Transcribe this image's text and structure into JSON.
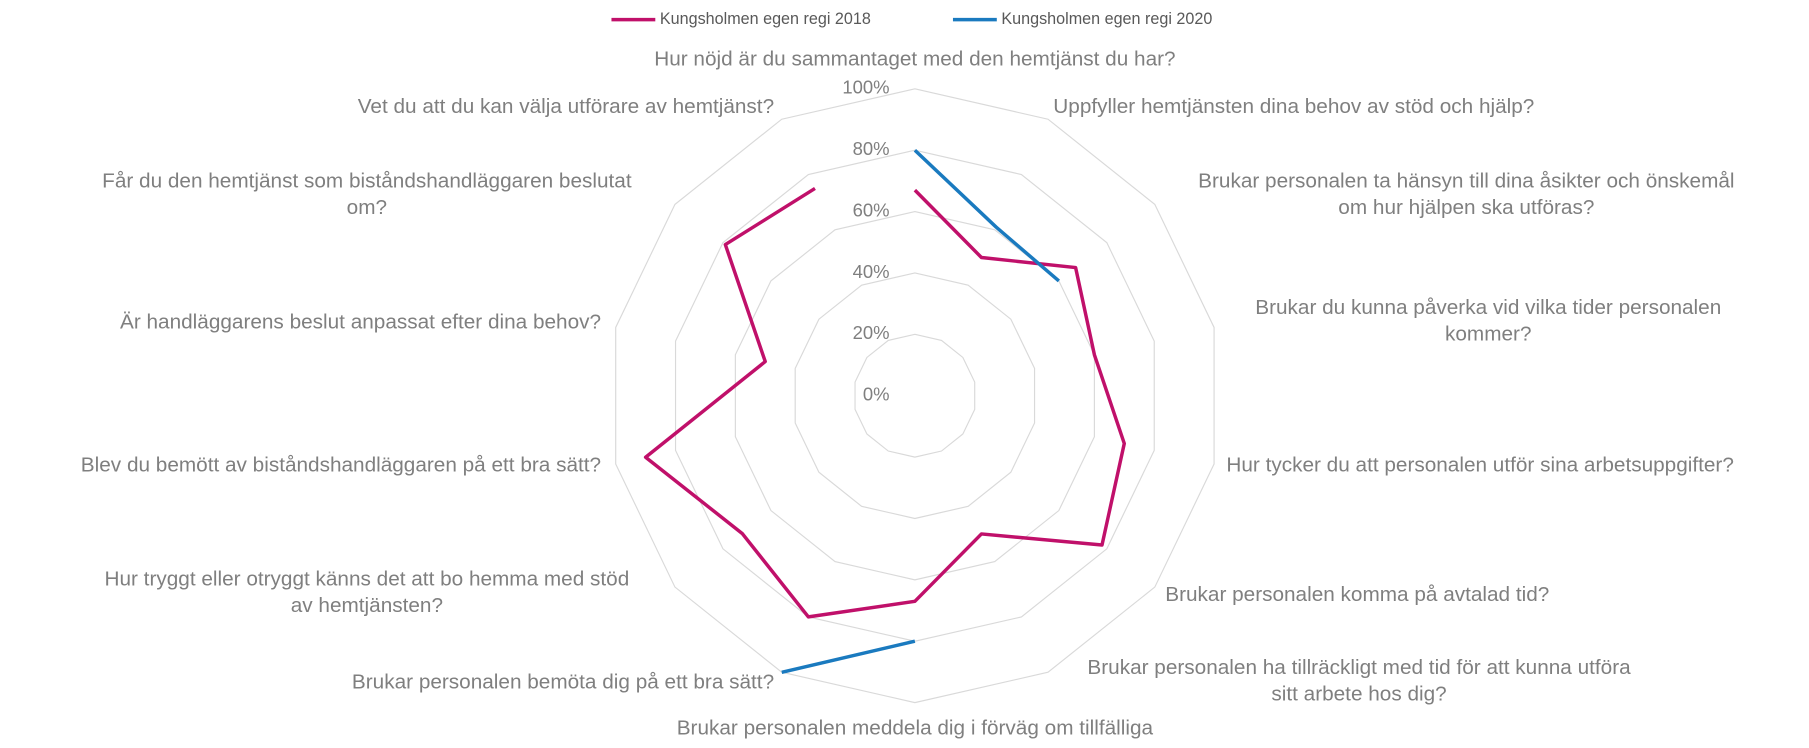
{
  "chart_data": {
    "type": "radar",
    "categories": [
      "Hur nöjd är du sammantaget med den hemtjänst du har?",
      "Uppfyller hemtjänsten dina behov av stöd och hjälp?",
      "Brukar personalen ta hänsyn till dina åsikter och önskemål om hur hjälpen ska utföras?",
      "Brukar du kunna påverka vid vilka tider personalen kommer?",
      "Hur tycker du att personalen utför sina arbetsuppgifter?",
      "Brukar personalen komma på avtalad tid?",
      "Brukar personalen ha tillräckligt med tid för att kunna utföra sitt arbete hos dig?",
      "Brukar personalen meddela dig i förväg om tillfälliga",
      "Brukar personalen bemöta dig på ett bra sätt?",
      "Hur tryggt eller otryggt känns det att bo hemma med stöd av hemtjänsten?",
      "Blev du bemött av biståndshandläggaren på ett bra sätt?",
      "Är handläggarens beslut anpassat efter dina behov?",
      "Får du den hemtjänst som biståndshandläggaren beslutat om?",
      "Vet du att du kan välja utförare av hemtjänst?"
    ],
    "series": [
      {
        "name": "Kungsholmen egen regi 2018",
        "color": "#c0106a",
        "values": [
          67,
          50,
          67,
          60,
          70,
          78,
          50,
          67,
          80,
          72,
          90,
          50,
          79,
          75
        ]
      },
      {
        "name": "Kungsholmen egen regi 2020",
        "color": "#1a7abf",
        "values": [
          80,
          61,
          60,
          null,
          null,
          null,
          null,
          80,
          100,
          null,
          null,
          null,
          null,
          null
        ]
      }
    ],
    "ylim": [
      0,
      100
    ],
    "yticks": [
      {
        "value": 0,
        "label": "0%"
      },
      {
        "value": 20,
        "label": "20%"
      },
      {
        "value": 40,
        "label": "40%"
      },
      {
        "value": 60,
        "label": "60%"
      },
      {
        "value": 80,
        "label": "80%"
      },
      {
        "value": 100,
        "label": "100%"
      }
    ],
    "grid": true,
    "legend": "top"
  }
}
